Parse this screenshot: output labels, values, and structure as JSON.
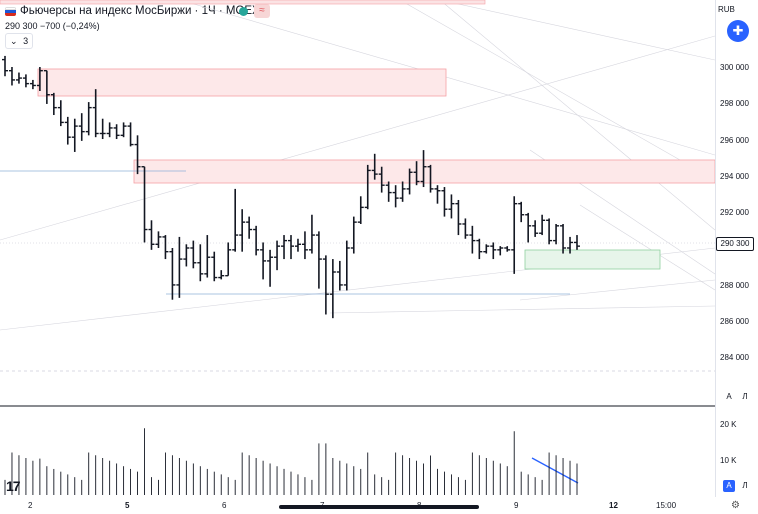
{
  "header": {
    "title": "Фьючерсы на индекс МосБиржи · 1Ч · MOEX",
    "red_badge": "≈",
    "price_line": "290 300  −700 (−0,24%)",
    "collapse_label": "3"
  },
  "colors": {
    "up": "#131722",
    "accent": "#2962ff",
    "supply_zone": "#f23645",
    "demand_zone": "#089981"
  },
  "price_axis": {
    "currency": "RUB",
    "ticks": [
      "300 000",
      "298 000",
      "296 000",
      "294 000",
      "292 000",
      "290 000",
      "288 000",
      "286 000",
      "284 000"
    ],
    "current_price": "290 300",
    "auto_label": "A",
    "log_label": "Л"
  },
  "volume_axis": {
    "ticks": [
      "20 K",
      "10 K"
    ],
    "auto_label": "A",
    "log_label": "Л"
  },
  "time_axis": {
    "labels": [
      "2",
      "5",
      "6",
      "7",
      "8",
      "9",
      "12",
      "15:00"
    ]
  },
  "chart_data": {
    "type": "bar",
    "ylim": [
      283000,
      302000
    ],
    "bars": [
      [
        300400,
        299800,
        300600,
        299500
      ],
      [
        299800,
        299300,
        300000,
        299000
      ],
      [
        299300,
        299400,
        299700,
        299100
      ],
      [
        299400,
        299100,
        299600,
        298900
      ],
      [
        299100,
        299000,
        299300,
        298800
      ],
      [
        299000,
        299800,
        300000,
        298700
      ],
      [
        299800,
        298500,
        299800,
        298000
      ],
      [
        298500,
        297800,
        298600,
        297400
      ],
      [
        297800,
        297000,
        298200,
        296800
      ],
      [
        297000,
        296200,
        297300,
        295800
      ],
      [
        296200,
        296800,
        297200,
        295400
      ],
      [
        296800,
        296500,
        297500,
        296000
      ],
      [
        296500,
        297800,
        298100,
        296300
      ],
      [
        297800,
        296400,
        298800,
        296200
      ],
      [
        296400,
        296400,
        297200,
        296100
      ],
      [
        296400,
        296700,
        297000,
        296200
      ],
      [
        296700,
        296300,
        296900,
        296100
      ],
      [
        296300,
        296800,
        297000,
        296200
      ],
      [
        296800,
        295800,
        297000,
        295700
      ],
      [
        295800,
        294600,
        296300,
        294200
      ],
      [
        294600,
        291200,
        294600,
        290500
      ],
      [
        291200,
        290400,
        291700,
        290100
      ],
      [
        290400,
        290800,
        291100,
        290200
      ],
      [
        290800,
        290000,
        290900,
        289600
      ],
      [
        290000,
        288200,
        290200,
        287400
      ],
      [
        288200,
        289600,
        290800,
        287500
      ],
      [
        289600,
        290200,
        290400,
        289200
      ],
      [
        290200,
        289400,
        290600,
        289100
      ],
      [
        289400,
        288800,
        290400,
        288400
      ],
      [
        288800,
        289700,
        290900,
        288600
      ],
      [
        289700,
        288600,
        290000,
        288400
      ],
      [
        288600,
        288700,
        289000,
        288500
      ],
      [
        288700,
        290100,
        290500,
        288700
      ],
      [
        290100,
        290900,
        293400,
        290000
      ],
      [
        290900,
        291600,
        292300,
        290000
      ],
      [
        291600,
        291200,
        291900,
        290700
      ],
      [
        291200,
        290100,
        291400,
        289800
      ],
      [
        290100,
        289500,
        290500,
        288500
      ],
      [
        289500,
        289700,
        290100,
        288100
      ],
      [
        289700,
        290300,
        290600,
        289000
      ],
      [
        290300,
        290600,
        290900,
        289600
      ],
      [
        290600,
        290300,
        290900,
        289600
      ],
      [
        290300,
        290400,
        290700,
        290000
      ],
      [
        290400,
        290100,
        291100,
        289600
      ],
      [
        290100,
        290900,
        292000,
        289900
      ],
      [
        290900,
        289600,
        291100,
        288000
      ],
      [
        289600,
        287700,
        289800,
        286600
      ],
      [
        287700,
        288900,
        289600,
        286400
      ],
      [
        288900,
        288200,
        289500,
        287900
      ],
      [
        288200,
        290200,
        290600,
        287900
      ],
      [
        290200,
        291600,
        291900,
        289900
      ],
      [
        291600,
        292400,
        293000,
        291500
      ],
      [
        292400,
        294400,
        294700,
        292300
      ],
      [
        294400,
        294200,
        295300,
        293900
      ],
      [
        294200,
        293600,
        294600,
        293200
      ],
      [
        293600,
        293200,
        293800,
        292700
      ],
      [
        293200,
        292900,
        293600,
        292400
      ],
      [
        292900,
        293400,
        293800,
        292700
      ],
      [
        293400,
        294300,
        294500,
        293100
      ],
      [
        294300,
        293800,
        294900,
        293600
      ],
      [
        293800,
        294600,
        295500,
        293500
      ],
      [
        294600,
        293400,
        294700,
        293200
      ],
      [
        293400,
        293300,
        293600,
        292600
      ],
      [
        293300,
        292300,
        293500,
        291900
      ],
      [
        292300,
        292600,
        293100,
        291800
      ],
      [
        292600,
        291500,
        292800,
        290900
      ],
      [
        291500,
        290900,
        291800,
        290700
      ],
      [
        290900,
        290600,
        291400,
        289900
      ],
      [
        290600,
        290000,
        290700,
        289600
      ],
      [
        290000,
        290300,
        290400,
        289900
      ],
      [
        290300,
        290100,
        290500,
        289600
      ],
      [
        290100,
        290200,
        290300,
        289800
      ],
      [
        290200,
        290100,
        290300,
        290000
      ],
      [
        290100,
        292600,
        293000,
        288800
      ],
      [
        292600,
        292000,
        292700,
        291600
      ],
      [
        292000,
        291400,
        292100,
        290500
      ],
      [
        291400,
        291000,
        291700,
        290800
      ],
      [
        291000,
        291700,
        292000,
        290900
      ],
      [
        291700,
        290600,
        291800,
        290400
      ],
      [
        290600,
        291400,
        291500,
        290400
      ],
      [
        291400,
        290200,
        291500,
        289900
      ],
      [
        290200,
        290500,
        290800,
        289900
      ],
      [
        290500,
        290300,
        290900,
        290100
      ]
    ],
    "volume_scale_max": 25000
  }
}
